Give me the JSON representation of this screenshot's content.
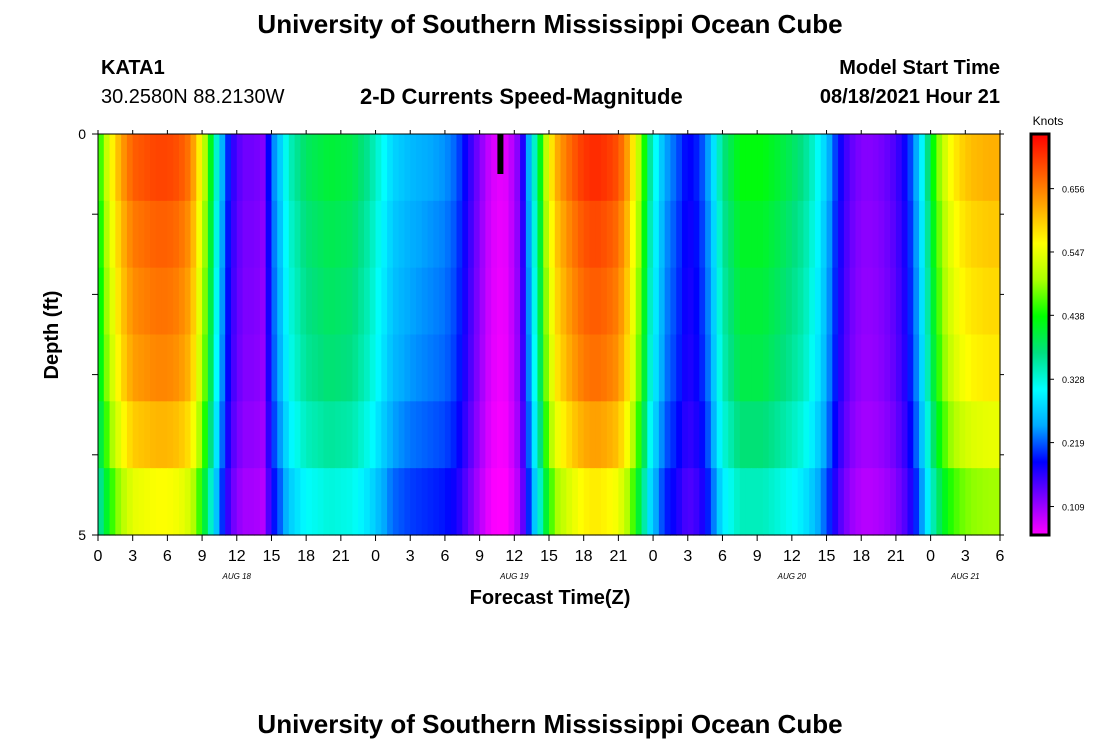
{
  "page": {
    "title": "University of Southern Mississippi Ocean Cube",
    "footer_title": "University of Southern Mississippi Ocean Cube"
  },
  "station": {
    "id": "KATA1",
    "coords": "30.2580N  88.2130W"
  },
  "model": {
    "label": "Model Start Time",
    "time": "08/18/2021 Hour 21"
  },
  "chart_data": {
    "type": "heatmap",
    "title": "2-D Currents Speed-Magnitude",
    "xlabel": "Forecast Time(Z)",
    "ylabel": "Depth (ft)",
    "x_hours_range": [
      0,
      78
    ],
    "x_tick_labels": [
      "0",
      "3",
      "6",
      "9",
      "12",
      "15",
      "18",
      "21",
      "0",
      "3",
      "6",
      "9",
      "12",
      "15",
      "18",
      "21",
      "0",
      "3",
      "6",
      "9",
      "12",
      "15",
      "18",
      "21",
      "0",
      "3",
      "6"
    ],
    "date_labels": [
      {
        "label": "AUG 18",
        "hour": 12
      },
      {
        "label": "AUG 19",
        "hour": 36
      },
      {
        "label": "AUG 20",
        "hour": 60
      },
      {
        "label": "AUG 21",
        "hour": 75
      }
    ],
    "ylim": [
      0,
      5
    ],
    "y_tick_labels": [
      "0",
      "5"
    ],
    "colorbar": {
      "unit": "Knots",
      "tick_labels": [
        "0.109",
        "0.219",
        "0.328",
        "0.438",
        "0.547",
        "0.656"
      ],
      "range": [
        0.06,
        0.75
      ],
      "colors": [
        "#ff00ff",
        "#7f00ff",
        "#0000ff",
        "#00aaff",
        "#00ffff",
        "#00e080",
        "#00ff00",
        "#aaff00",
        "#ffff00",
        "#ffaa00",
        "#ff5500",
        "#ff0000"
      ]
    },
    "current_time_marker_hour": 34.8,
    "speed_profile_knots": [
      [
        0,
        0.43
      ],
      [
        0.5,
        0.49
      ],
      [
        1,
        0.55
      ],
      [
        2,
        0.63
      ],
      [
        3,
        0.68
      ],
      [
        4,
        0.69
      ],
      [
        5,
        0.7
      ],
      [
        6,
        0.7
      ],
      [
        7,
        0.69
      ],
      [
        8,
        0.66
      ],
      [
        8.7,
        0.58
      ],
      [
        9.3,
        0.5
      ],
      [
        10,
        0.38
      ],
      [
        10.6,
        0.27
      ],
      [
        11.5,
        0.17
      ],
      [
        12.5,
        0.13
      ],
      [
        13.5,
        0.13
      ],
      [
        14.3,
        0.12
      ],
      [
        15,
        0.22
      ],
      [
        15.8,
        0.28
      ],
      [
        16.5,
        0.34
      ],
      [
        18,
        0.39
      ],
      [
        20,
        0.41
      ],
      [
        22,
        0.4
      ],
      [
        23.5,
        0.36
      ],
      [
        24.5,
        0.32
      ],
      [
        25.5,
        0.28
      ],
      [
        27,
        0.26
      ],
      [
        28.5,
        0.25
      ],
      [
        30,
        0.24
      ],
      [
        31,
        0.22
      ],
      [
        32,
        0.17
      ],
      [
        33,
        0.12
      ],
      [
        34,
        0.08
      ],
      [
        35,
        0.07
      ],
      [
        35.5,
        0.08
      ],
      [
        36.5,
        0.13
      ],
      [
        37.3,
        0.26
      ],
      [
        38,
        0.38
      ],
      [
        38.5,
        0.47
      ],
      [
        39,
        0.56
      ],
      [
        39.8,
        0.63
      ],
      [
        41,
        0.68
      ],
      [
        42,
        0.71
      ],
      [
        43,
        0.72
      ],
      [
        44,
        0.71
      ],
      [
        45,
        0.69
      ],
      [
        45.8,
        0.63
      ],
      [
        46.5,
        0.55
      ],
      [
        47.2,
        0.45
      ],
      [
        47.8,
        0.35
      ],
      [
        48.5,
        0.29
      ],
      [
        49,
        0.25
      ],
      [
        50,
        0.22
      ],
      [
        51,
        0.18
      ],
      [
        52,
        0.2
      ],
      [
        53,
        0.26
      ],
      [
        53.5,
        0.32
      ],
      [
        54,
        0.37
      ],
      [
        55.5,
        0.43
      ],
      [
        57.5,
        0.43
      ],
      [
        59.5,
        0.4
      ],
      [
        61,
        0.37
      ],
      [
        62,
        0.33
      ],
      [
        63,
        0.27
      ],
      [
        64,
        0.19
      ],
      [
        65,
        0.14
      ],
      [
        66,
        0.12
      ],
      [
        67,
        0.12
      ],
      [
        68,
        0.13
      ],
      [
        69,
        0.15
      ],
      [
        70,
        0.19
      ],
      [
        71,
        0.27
      ],
      [
        71.8,
        0.38
      ],
      [
        72.5,
        0.47
      ],
      [
        73.5,
        0.55
      ],
      [
        74.5,
        0.59
      ],
      [
        75.5,
        0.61
      ],
      [
        77,
        0.62
      ],
      [
        78,
        0.62
      ]
    ],
    "depth_multipliers": [
      1.0,
      0.97,
      0.95,
      0.93,
      0.88,
      0.8
    ]
  }
}
